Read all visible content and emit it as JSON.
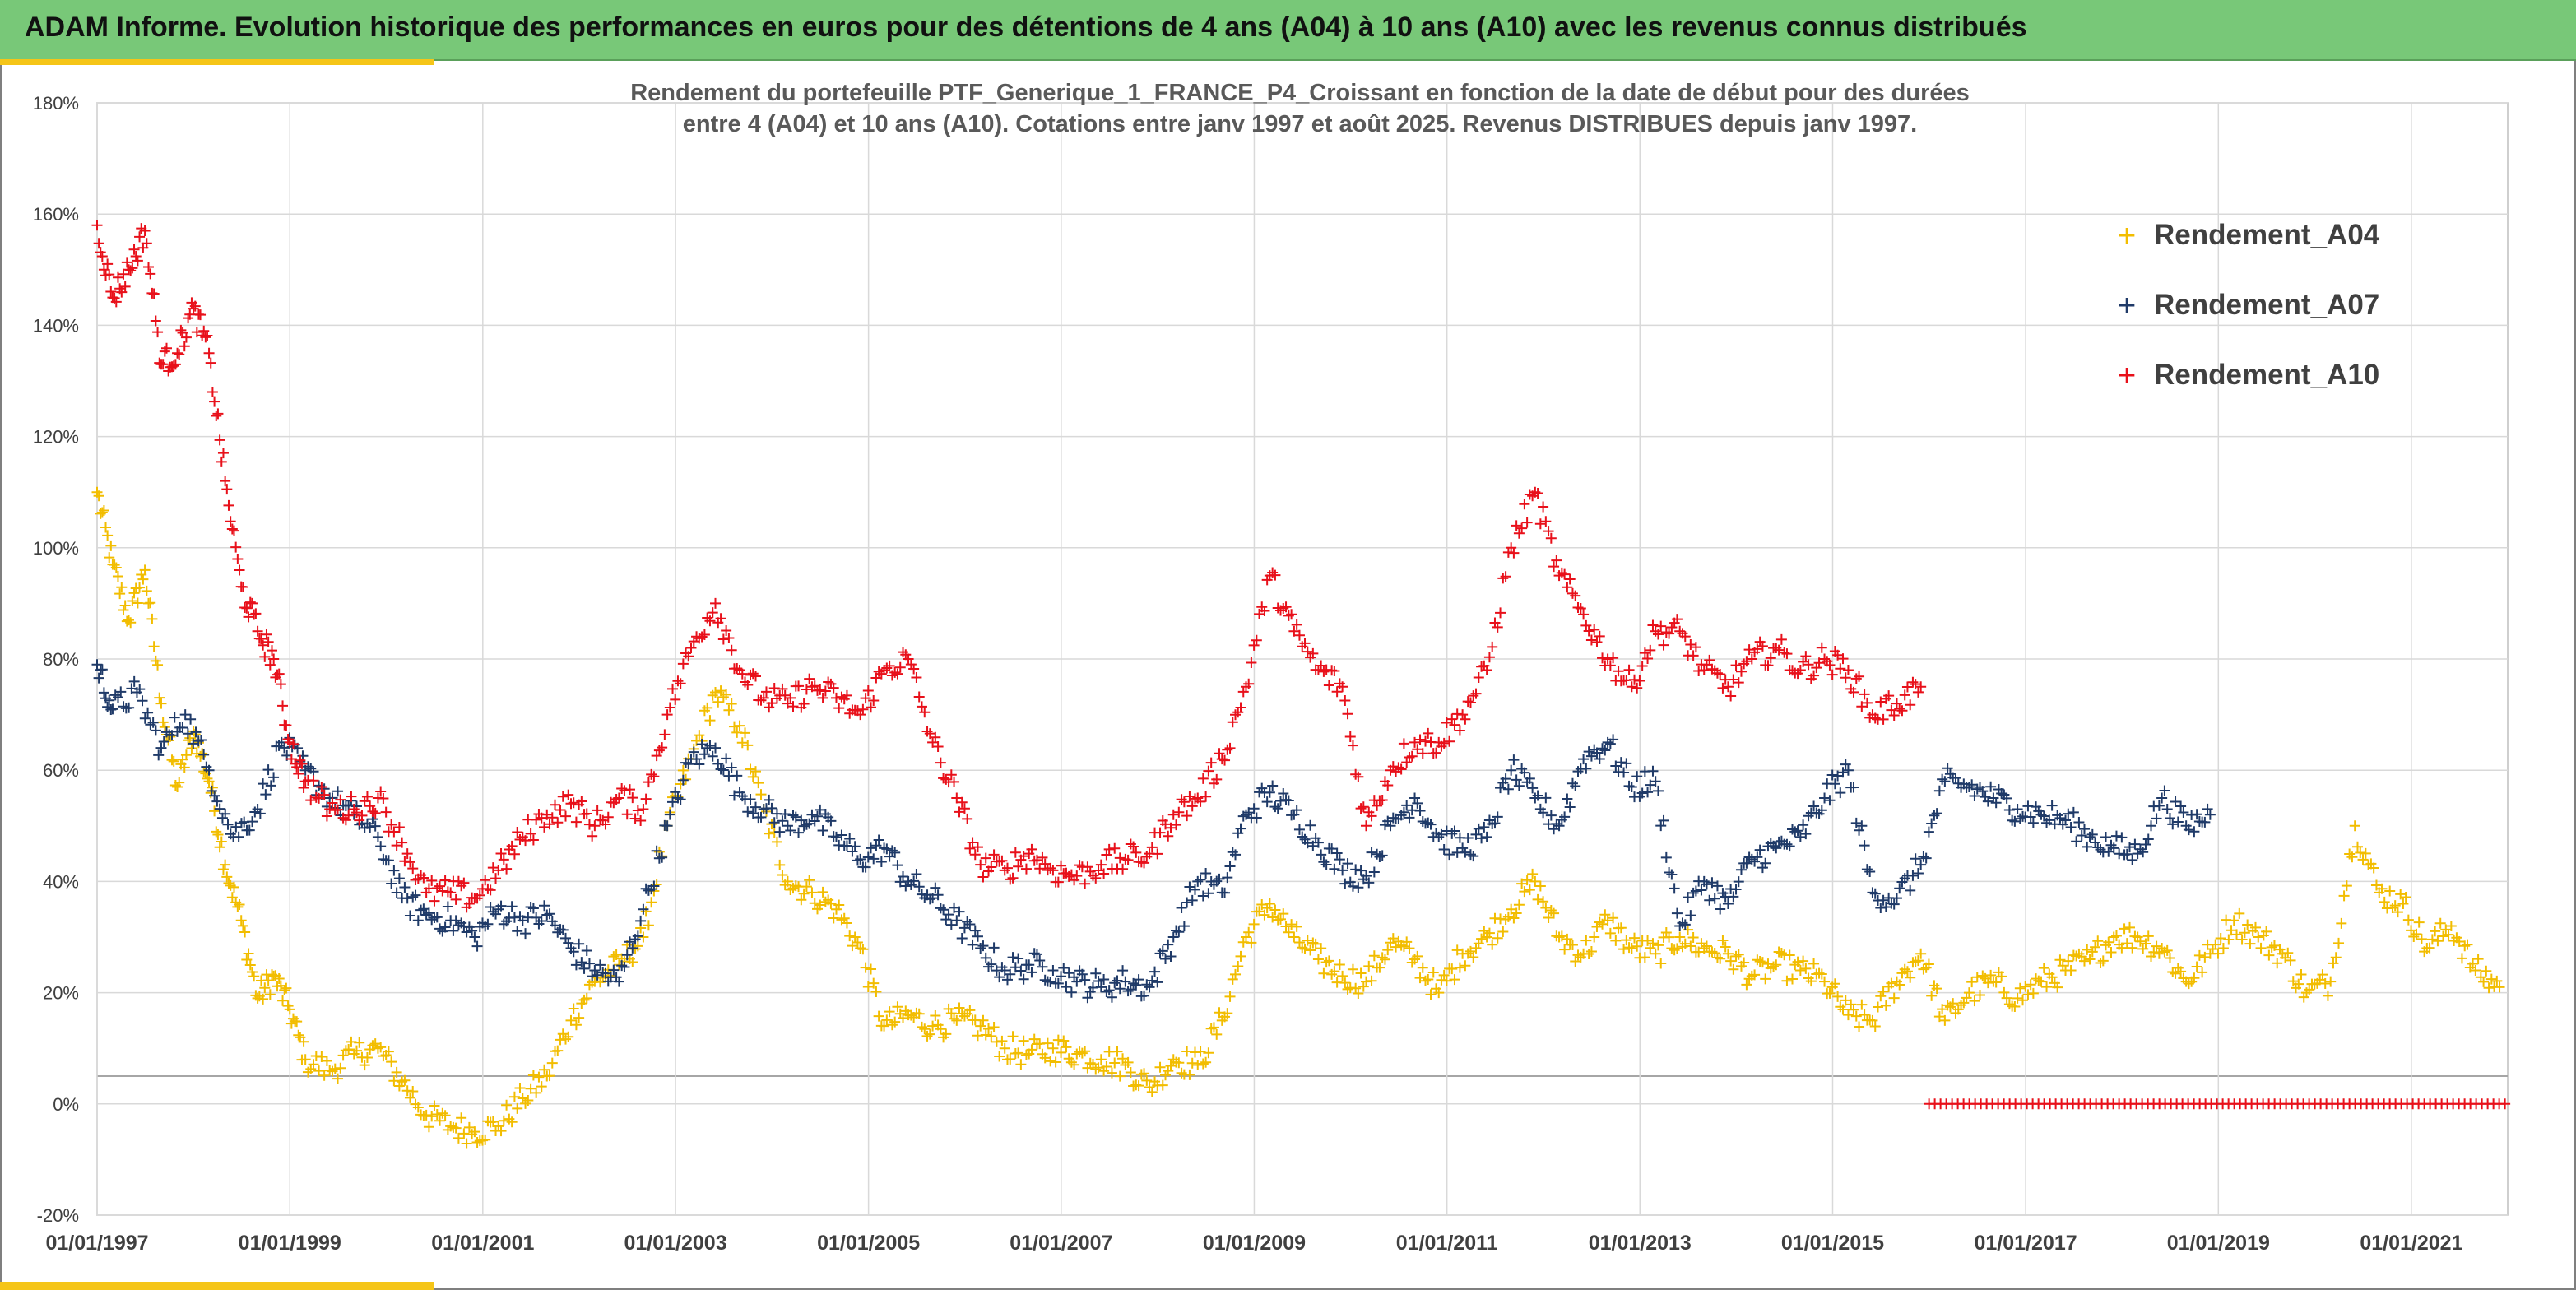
{
  "header": {
    "title": "ADAM Informe. Evolution historique des performances en euros pour des détentions de 4 ans (A04) à 10 ans (A10) avec les revenus connus distribués"
  },
  "colors": {
    "banner": "#78c878",
    "accent": "#f5c518",
    "A04": "#f2bd00",
    "A07": "#1f3a68",
    "A10": "#e8101a",
    "grid": "#d9d9d9"
  },
  "chart_data": {
    "type": "scatter",
    "marker": "plus",
    "title_lines": [
      "Rendement du portefeuille PTF_Generique_1_FRANCE_P4_Croissant en fonction de la date de début pour des durées",
      "entre 4 (A04) et 10 ans (A10). Cotations entre janv 1997 et août 2025. Revenus DISTRIBUES depuis janv 1997."
    ],
    "xlabel": "",
    "ylabel": "",
    "x_ticks": [
      "01/01/1997",
      "01/01/1999",
      "01/01/2001",
      "01/01/2003",
      "01/01/2005",
      "01/01/2007",
      "01/01/2009",
      "01/01/2011",
      "01/01/2013",
      "01/01/2015",
      "01/01/2017",
      "01/01/2019",
      "01/01/2021"
    ],
    "x_range": [
      "1997-01-01",
      "2022-01-01"
    ],
    "y_ticks": [
      "180%",
      "160%",
      "140%",
      "120%",
      "100%",
      "80%",
      "60%",
      "40%",
      "20%",
      "0%",
      "-20%"
    ],
    "y_range": [
      -20,
      180
    ],
    "y_unit": "%",
    "grid": true,
    "legend_position": "top-right",
    "series": [
      {
        "name": "Rendement_A04",
        "points": [
          [
            "1997-01",
            110
          ],
          [
            "1997-03",
            97
          ],
          [
            "1997-05",
            87
          ],
          [
            "1997-07",
            96
          ],
          [
            "1997-09",
            72
          ],
          [
            "1997-11",
            57
          ],
          [
            "1998-01",
            67
          ],
          [
            "1998-03",
            58
          ],
          [
            "1998-05",
            43
          ],
          [
            "1998-07",
            33
          ],
          [
            "1998-09",
            19
          ],
          [
            "1998-11",
            23
          ],
          [
            "1999-01",
            17
          ],
          [
            "1999-03",
            8
          ],
          [
            "1999-06",
            6
          ],
          [
            "1999-09",
            9
          ],
          [
            "1999-12",
            10
          ],
          [
            "2000-03",
            4
          ],
          [
            "2000-06",
            -2
          ],
          [
            "2000-09",
            -4
          ],
          [
            "2000-12",
            -5
          ],
          [
            "2001-03",
            -4
          ],
          [
            "2001-06",
            1
          ],
          [
            "2001-09",
            5
          ],
          [
            "2001-12",
            15
          ],
          [
            "2002-03",
            22
          ],
          [
            "2002-06",
            25
          ],
          [
            "2002-09",
            30
          ],
          [
            "2002-12",
            50
          ],
          [
            "2003-03",
            62
          ],
          [
            "2003-06",
            74
          ],
          [
            "2003-09",
            68
          ],
          [
            "2003-12",
            53
          ],
          [
            "2004-03",
            40
          ],
          [
            "2004-06",
            38
          ],
          [
            "2004-09",
            35
          ],
          [
            "2004-12",
            28
          ],
          [
            "2005-03",
            14
          ],
          [
            "2005-06",
            16
          ],
          [
            "2005-09",
            14
          ],
          [
            "2005-12",
            15
          ],
          [
            "2006-03",
            14
          ],
          [
            "2006-06",
            10
          ],
          [
            "2006-09",
            9
          ],
          [
            "2006-12",
            10
          ],
          [
            "2007-03",
            9
          ],
          [
            "2007-06",
            8
          ],
          [
            "2007-09",
            7
          ],
          [
            "2007-12",
            3
          ],
          [
            "2008-03",
            8
          ],
          [
            "2008-06",
            7
          ],
          [
            "2008-09",
            15
          ],
          [
            "2008-12",
            30
          ],
          [
            "2009-03",
            36
          ],
          [
            "2009-06",
            30
          ],
          [
            "2009-09",
            26
          ],
          [
            "2009-12",
            23
          ],
          [
            "2010-03",
            22
          ],
          [
            "2010-06",
            29
          ],
          [
            "2010-09",
            26
          ],
          [
            "2010-12",
            20
          ],
          [
            "2011-03",
            27
          ],
          [
            "2011-06",
            30
          ],
          [
            "2011-09",
            35
          ],
          [
            "2011-12",
            40
          ],
          [
            "2012-03",
            30
          ],
          [
            "2012-06",
            27
          ],
          [
            "2012-09",
            33
          ],
          [
            "2012-12",
            28
          ],
          [
            "2013-03",
            27
          ],
          [
            "2013-06",
            30
          ],
          [
            "2013-09",
            28
          ],
          [
            "2013-12",
            27
          ],
          [
            "2014-03",
            23
          ],
          [
            "2014-06",
            25
          ],
          [
            "2014-09",
            24
          ],
          [
            "2014-12",
            22
          ],
          [
            "2015-03",
            16
          ],
          [
            "2015-06",
            15
          ],
          [
            "2015-09",
            22
          ],
          [
            "2015-12",
            27
          ],
          [
            "2016-03",
            15
          ],
          [
            "2016-06",
            20
          ],
          [
            "2016-09",
            22
          ],
          [
            "2016-12",
            19
          ],
          [
            "2017-03",
            22
          ],
          [
            "2017-06",
            24
          ],
          [
            "2017-09",
            26
          ],
          [
            "2017-12",
            30
          ],
          [
            "2018-03",
            30
          ],
          [
            "2018-06",
            28
          ],
          [
            "2018-09",
            22
          ],
          [
            "2018-12",
            27
          ],
          [
            "2019-03",
            33
          ],
          [
            "2019-06",
            30
          ],
          [
            "2019-09",
            27
          ],
          [
            "2019-12",
            20
          ],
          [
            "2020-03",
            22
          ],
          [
            "2020-06",
            50
          ],
          [
            "2020-09",
            38
          ],
          [
            "2020-12",
            36
          ],
          [
            "2021-03",
            28
          ],
          [
            "2021-06",
            32
          ],
          [
            "2021-09",
            24
          ],
          [
            "2021-12",
            21
          ]
        ]
      },
      {
        "name": "Rendement_A07",
        "points": [
          [
            "1997-01",
            79
          ],
          [
            "1997-03",
            71
          ],
          [
            "1997-06",
            74
          ],
          [
            "1997-09",
            64
          ],
          [
            "1997-12",
            70
          ],
          [
            "1998-03",
            60
          ],
          [
            "1998-06",
            48
          ],
          [
            "1998-09",
            53
          ],
          [
            "1998-12",
            65
          ],
          [
            "1999-03",
            60
          ],
          [
            "1999-06",
            55
          ],
          [
            "1999-09",
            52
          ],
          [
            "1999-12",
            48
          ],
          [
            "2000-03",
            37
          ],
          [
            "2000-06",
            34
          ],
          [
            "2000-09",
            33
          ],
          [
            "2000-12",
            30
          ],
          [
            "2001-03",
            35
          ],
          [
            "2001-06",
            33
          ],
          [
            "2001-09",
            34
          ],
          [
            "2001-12",
            28
          ],
          [
            "2002-03",
            24
          ],
          [
            "2002-06",
            22
          ],
          [
            "2002-09",
            35
          ],
          [
            "2002-12",
            50
          ],
          [
            "2003-03",
            62
          ],
          [
            "2003-06",
            64
          ],
          [
            "2003-09",
            56
          ],
          [
            "2003-12",
            53
          ],
          [
            "2004-03",
            50
          ],
          [
            "2004-06",
            52
          ],
          [
            "2004-09",
            48
          ],
          [
            "2004-12",
            44
          ],
          [
            "2005-03",
            46
          ],
          [
            "2005-06",
            40
          ],
          [
            "2005-09",
            37
          ],
          [
            "2005-12",
            33
          ],
          [
            "2006-03",
            28
          ],
          [
            "2006-06",
            24
          ],
          [
            "2006-09",
            25
          ],
          [
            "2006-12",
            24
          ],
          [
            "2007-03",
            22
          ],
          [
            "2007-06",
            21
          ],
          [
            "2007-09",
            22
          ],
          [
            "2007-12",
            21
          ],
          [
            "2008-03",
            30
          ],
          [
            "2008-06",
            40
          ],
          [
            "2008-09",
            38
          ],
          [
            "2008-12",
            52
          ],
          [
            "2009-03",
            56
          ],
          [
            "2009-06",
            52
          ],
          [
            "2009-09",
            47
          ],
          [
            "2009-12",
            42
          ],
          [
            "2010-03",
            41
          ],
          [
            "2010-06",
            50
          ],
          [
            "2010-09",
            55
          ],
          [
            "2010-12",
            48
          ],
          [
            "2011-03",
            46
          ],
          [
            "2011-06",
            48
          ],
          [
            "2011-09",
            60
          ],
          [
            "2011-12",
            55
          ],
          [
            "2012-03",
            50
          ],
          [
            "2012-06",
            62
          ],
          [
            "2012-09",
            65
          ],
          [
            "2012-12",
            57
          ],
          [
            "2013-03",
            58
          ],
          [
            "2013-06",
            32
          ],
          [
            "2013-09",
            40
          ],
          [
            "2013-12",
            36
          ],
          [
            "2014-03",
            44
          ],
          [
            "2014-06",
            46
          ],
          [
            "2014-09",
            48
          ],
          [
            "2014-12",
            55
          ],
          [
            "2015-03",
            60
          ],
          [
            "2015-06",
            38
          ],
          [
            "2015-09",
            37
          ],
          [
            "2015-12",
            43
          ],
          [
            "2016-03",
            58
          ],
          [
            "2016-06",
            57
          ],
          [
            "2016-09",
            55
          ],
          [
            "2016-12",
            53
          ],
          [
            "2017-03",
            52
          ],
          [
            "2017-06",
            51
          ],
          [
            "2017-09",
            48
          ],
          [
            "2017-12",
            46
          ],
          [
            "2018-03",
            45
          ],
          [
            "2018-06",
            55
          ],
          [
            "2018-09",
            50
          ],
          [
            "2018-12",
            52
          ]
        ]
      },
      {
        "name": "Rendement_A10",
        "points": [
          [
            "1997-01",
            158
          ],
          [
            "1997-03",
            145
          ],
          [
            "1997-05",
            150
          ],
          [
            "1997-07",
            157
          ],
          [
            "1997-09",
            133
          ],
          [
            "1997-11",
            135
          ],
          [
            "1998-01",
            143
          ],
          [
            "1998-03",
            135
          ],
          [
            "1998-05",
            112
          ],
          [
            "1998-07",
            93
          ],
          [
            "1998-09",
            85
          ],
          [
            "1998-11",
            80
          ],
          [
            "1999-01",
            65
          ],
          [
            "1999-03",
            58
          ],
          [
            "1999-06",
            53
          ],
          [
            "1999-09",
            53
          ],
          [
            "1999-12",
            55
          ],
          [
            "2000-03",
            47
          ],
          [
            "2000-06",
            38
          ],
          [
            "2000-09",
            38
          ],
          [
            "2000-12",
            37
          ],
          [
            "2001-03",
            42
          ],
          [
            "2001-06",
            48
          ],
          [
            "2001-09",
            52
          ],
          [
            "2001-12",
            54
          ],
          [
            "2002-03",
            50
          ],
          [
            "2002-06",
            55
          ],
          [
            "2002-09",
            53
          ],
          [
            "2002-12",
            70
          ],
          [
            "2003-03",
            82
          ],
          [
            "2003-06",
            90
          ],
          [
            "2003-09",
            78
          ],
          [
            "2003-12",
            73
          ],
          [
            "2004-03",
            72
          ],
          [
            "2004-06",
            75
          ],
          [
            "2004-09",
            73
          ],
          [
            "2004-12",
            70
          ],
          [
            "2005-03",
            78
          ],
          [
            "2005-06",
            80
          ],
          [
            "2005-09",
            65
          ],
          [
            "2005-12",
            55
          ],
          [
            "2006-03",
            43
          ],
          [
            "2006-06",
            42
          ],
          [
            "2006-09",
            45
          ],
          [
            "2006-12",
            42
          ],
          [
            "2007-03",
            41
          ],
          [
            "2007-06",
            43
          ],
          [
            "2007-09",
            44
          ],
          [
            "2007-12",
            45
          ],
          [
            "2008-03",
            52
          ],
          [
            "2008-06",
            55
          ],
          [
            "2008-09",
            62
          ],
          [
            "2008-12",
            75
          ],
          [
            "2009-03",
            95
          ],
          [
            "2009-06",
            85
          ],
          [
            "2009-09",
            78
          ],
          [
            "2009-12",
            75
          ],
          [
            "2010-03",
            50
          ],
          [
            "2010-06",
            60
          ],
          [
            "2010-09",
            65
          ],
          [
            "2010-12",
            65
          ],
          [
            "2011-03",
            70
          ],
          [
            "2011-06",
            78
          ],
          [
            "2011-09",
            100
          ],
          [
            "2011-12",
            110
          ],
          [
            "2012-03",
            95
          ],
          [
            "2012-06",
            88
          ],
          [
            "2012-09",
            80
          ],
          [
            "2012-12",
            75
          ],
          [
            "2013-03",
            85
          ],
          [
            "2013-06",
            85
          ],
          [
            "2013-09",
            78
          ],
          [
            "2013-12",
            75
          ],
          [
            "2014-03",
            80
          ],
          [
            "2014-06",
            82
          ],
          [
            "2014-09",
            78
          ],
          [
            "2014-12",
            80
          ],
          [
            "2015-03",
            78
          ],
          [
            "2015-06",
            70
          ],
          [
            "2015-09",
            72
          ],
          [
            "2015-12",
            75
          ]
        ]
      }
    ],
    "zero_baseline_A10": {
      "from": "2016-01",
      "to": "2022-01",
      "value": 0
    }
  }
}
